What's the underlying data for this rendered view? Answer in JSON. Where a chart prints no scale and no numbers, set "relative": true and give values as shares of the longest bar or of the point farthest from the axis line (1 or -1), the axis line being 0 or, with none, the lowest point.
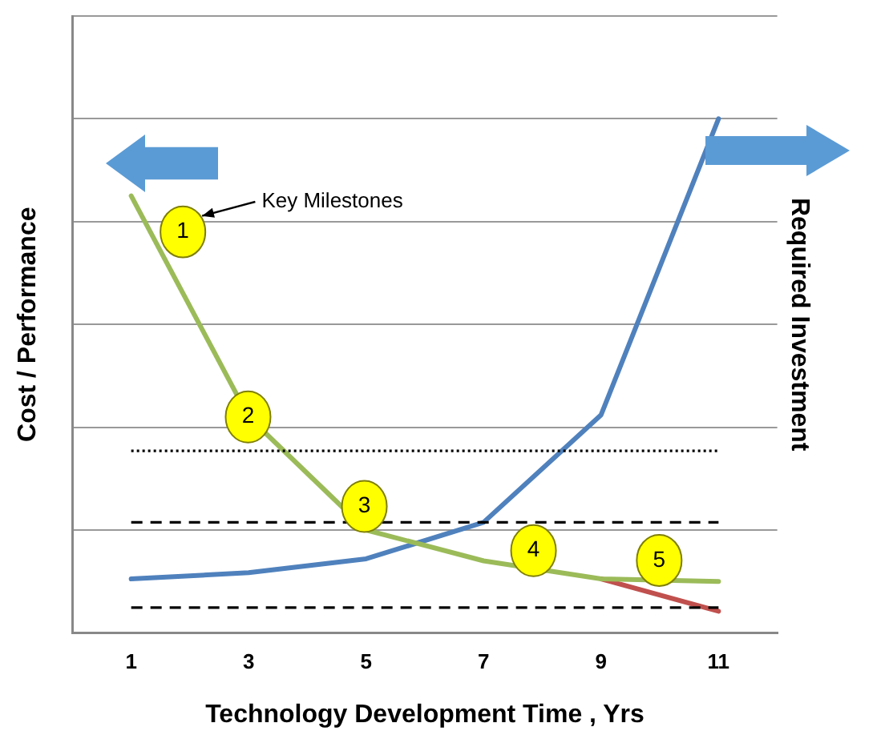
{
  "chart_data": {
    "type": "line",
    "relative": true,
    "xlabel": "Technology Development Time , Yrs",
    "ylabel": "Cost / Performance",
    "y2label": "Required Investment",
    "x": [
      1,
      3,
      5,
      7,
      9,
      11
    ],
    "xlim": [
      0,
      12
    ],
    "xticks": [
      1,
      3,
      5,
      7,
      9,
      11
    ],
    "series": [
      {
        "color": "#9bbb59",
        "values": [
          0.85,
          0.42,
          0.2,
          0.14,
          0.105,
          0.1
        ]
      },
      {
        "color": "#4f81bd",
        "values": [
          0.105,
          0.117,
          0.144,
          0.215,
          0.424,
          1
        ]
      },
      {
        "color": "#c0504d",
        "x": [
          9,
          11
        ],
        "values": [
          0.105,
          0.042
        ]
      }
    ],
    "ref_lines": [
      {
        "axis": "y",
        "value": 0.354,
        "line_style": "dotted"
      },
      {
        "axis": "y",
        "value": 0.215,
        "line_style": "dashed"
      },
      {
        "axis": "y",
        "value": 0.049,
        "line_style": "dashed"
      }
    ],
    "annotations": [
      "Key Milestones",
      {
        "text": "1",
        "x": 1.88,
        "y": 0.78
      },
      {
        "text": "2",
        "x": 2.99,
        "y": 0.42
      },
      {
        "text": "3",
        "x": 4.97,
        "y": 0.246
      },
      {
        "text": "4",
        "x": 7.85,
        "y": 0.16
      },
      {
        "text": "5",
        "x": 9.99,
        "y": 0.141
      }
    ],
    "grid": "y",
    "legend": false,
    "marker": "none",
    "line_style": "solid"
  }
}
